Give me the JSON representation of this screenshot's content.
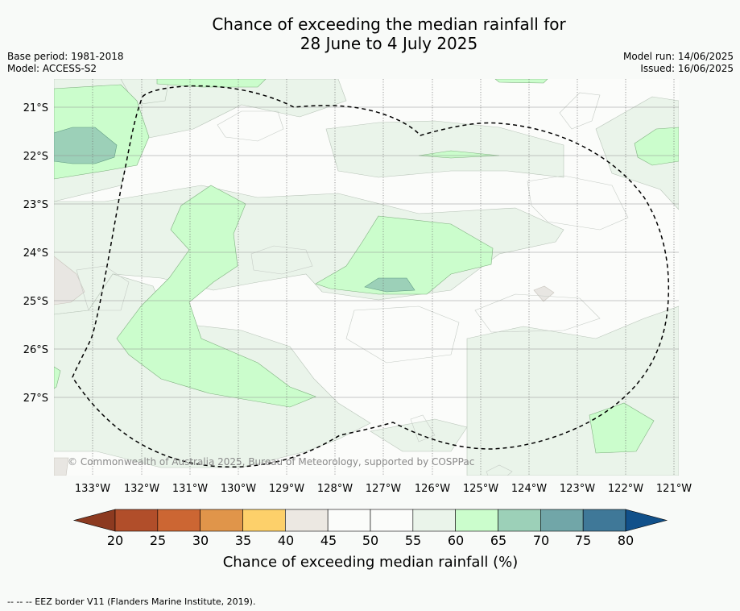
{
  "title_line1": "Chance of exceeding the median rainfall for",
  "title_line2": "28 June to 4 July 2025",
  "base_period": "Base period: 1981-2018",
  "model": "Model: ACCESS-S2",
  "model_run": "Model run: 14/06/2025",
  "issued": "Issued: 16/06/2025",
  "copyright": "© Commonwealth of Australia 2025, Bureau of Meteorology, supported by COSPPac",
  "lat_ticks": [
    "21°S",
    "22°S",
    "23°S",
    "24°S",
    "25°S",
    "26°S",
    "27°S"
  ],
  "lon_ticks": [
    "133°W",
    "132°W",
    "131°W",
    "130°W",
    "129°W",
    "128°W",
    "127°W",
    "126°W",
    "125°W",
    "124°W",
    "123°W",
    "122°W",
    "121°W"
  ],
  "colorbar": {
    "label": "Chance of exceeding median rainfall (%)",
    "ticks": [
      "20",
      "25",
      "30",
      "35",
      "40",
      "45",
      "50",
      "55",
      "60",
      "65",
      "70",
      "75",
      "80"
    ],
    "colors": [
      "#8c3a20",
      "#b14e2a",
      "#cc6633",
      "#e0954a",
      "#fdd06a",
      "#ece8e2",
      "#fbfcfa",
      "#fbfcfa",
      "#eaf4ea",
      "#cbfdcc",
      "#9cd0b8",
      "#71a6a8",
      "#3f7898",
      "#11508a"
    ]
  },
  "footnote": "--  --  -- EEZ border V11 (Flanders Marine Institute, 2019).",
  "icons": {
    "colorbar_left_end": "triangle-left",
    "colorbar_right_end": "triangle-right"
  }
}
